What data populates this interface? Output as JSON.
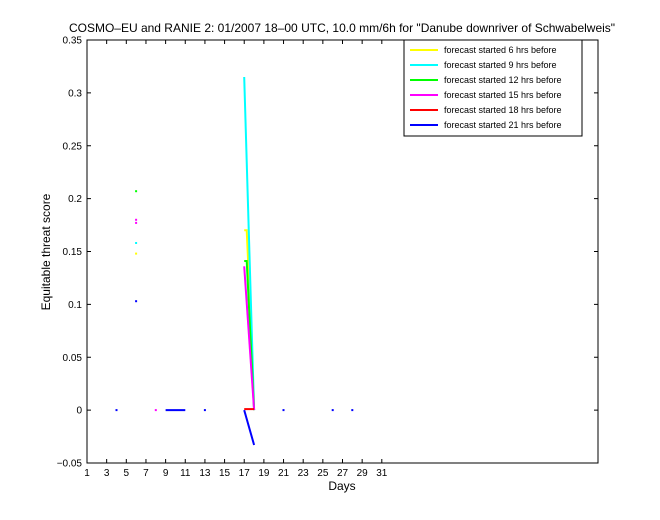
{
  "chart_data": {
    "type": "line",
    "title": "COSMO–EU and RANIE 2: 01/2007 18–00 UTC, 10.0 mm/6h for \"Danube downriver of Schwabelweis\"",
    "xlabel": "Days",
    "ylabel": "Equitable threat score",
    "xlim": [
      1,
      53
    ],
    "ylim": [
      -0.05,
      0.35
    ],
    "xticks": [
      "1",
      "3",
      "5",
      "7",
      "9",
      "11",
      "13",
      "15",
      "17",
      "19",
      "21",
      "23",
      "25",
      "27",
      "29",
      "31"
    ],
    "yticks": [
      "−0.05",
      "0",
      "0.05",
      "0.1",
      "0.15",
      "0.2",
      "0.25",
      "0.3",
      "0.35"
    ],
    "legend_position": "top-right",
    "grid": false,
    "series": [
      {
        "name": "forecast started 6 hrs before",
        "color": "#ffff00",
        "segments": [
          [
            [
              17,
              0.17
            ],
            [
              17.25,
              0.17
            ],
            [
              17.5,
              0.12
            ],
            [
              18,
              0
            ]
          ]
        ],
        "dots": [
          [
            6,
            0.148
          ]
        ]
      },
      {
        "name": "forecast started 9 hrs before",
        "color": "#00ffff",
        "segments": [
          [
            [
              17,
              0.315
            ],
            [
              18,
              0
            ]
          ]
        ],
        "dots": [
          [
            6,
            0.158
          ]
        ]
      },
      {
        "name": "forecast started 12 hrs before",
        "color": "#00ff00",
        "segments": [
          [
            [
              17,
              0.141
            ],
            [
              17.25,
              0.141
            ],
            [
              18,
              0
            ]
          ]
        ],
        "dots": [
          [
            6,
            0.207
          ]
        ]
      },
      {
        "name": "forecast started 15 hrs before",
        "color": "#ff00ff",
        "segments": [
          [
            [
              17,
              0.136
            ],
            [
              18,
              0
            ]
          ]
        ],
        "dots": [
          [
            6,
            0.177
          ],
          [
            6,
            0.18
          ],
          [
            8,
            0
          ]
        ]
      },
      {
        "name": "forecast started 18 hrs before",
        "color": "#ff0000",
        "segments": [
          [
            [
              17,
              0.001
            ],
            [
              18,
              0.001
            ]
          ]
        ],
        "dots": []
      },
      {
        "name": "forecast started 21 hrs before",
        "color": "#0000ff",
        "segments": [
          [
            [
              9,
              0
            ],
            [
              11,
              0
            ]
          ],
          [
            [
              17,
              0
            ],
            [
              18,
              -0.033
            ]
          ]
        ],
        "dots": [
          [
            4,
            0
          ],
          [
            6,
            0.103
          ],
          [
            13,
            0
          ],
          [
            21,
            0
          ],
          [
            26,
            0
          ],
          [
            28,
            0
          ]
        ]
      }
    ]
  }
}
